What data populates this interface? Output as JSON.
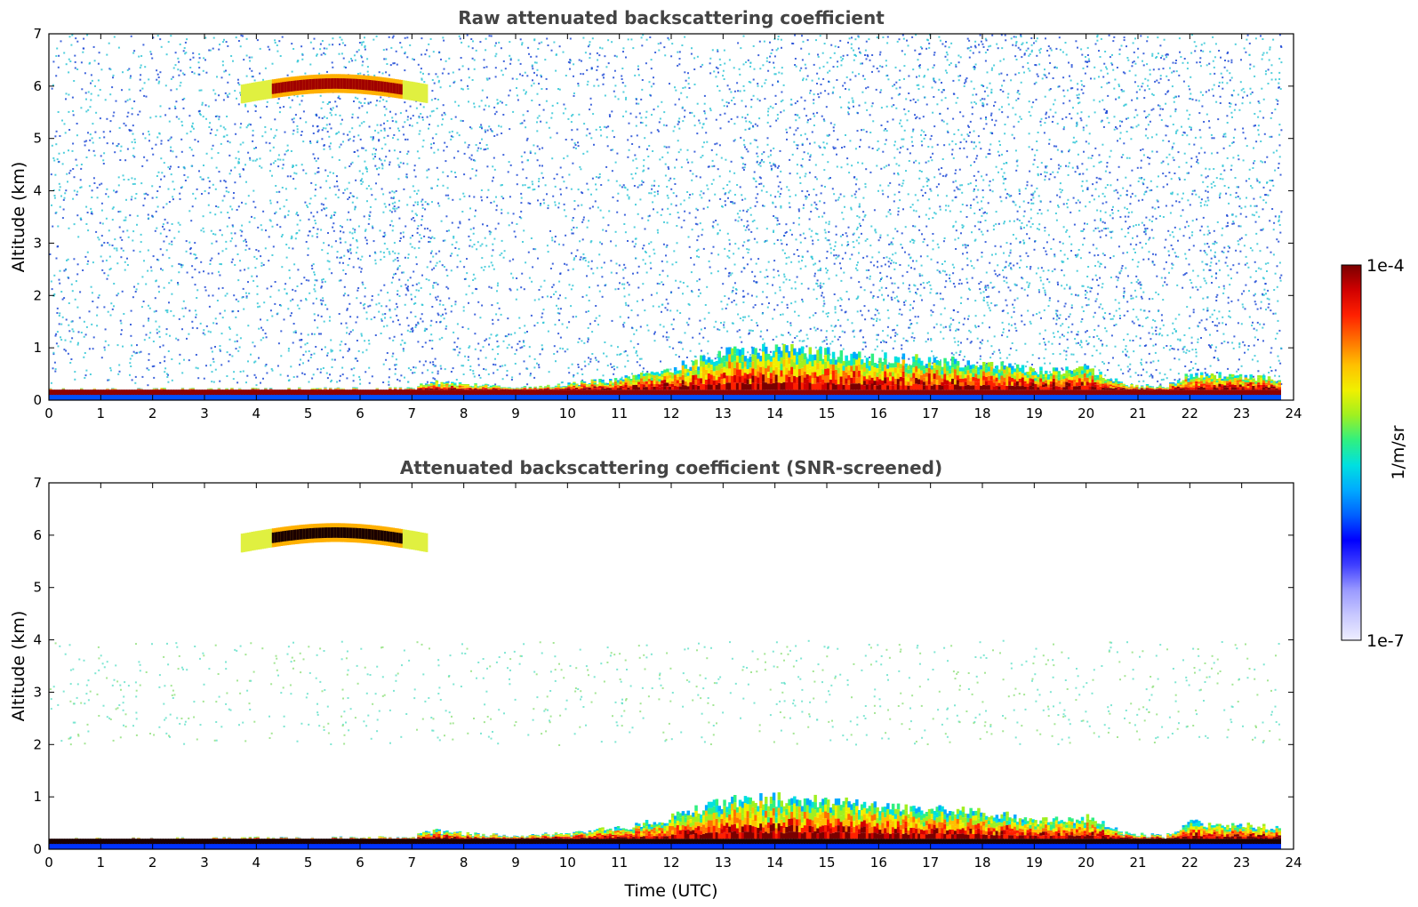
{
  "colors": {
    "colormap": [
      "#eeeeff",
      "#c8c8ff",
      "#9a9aff",
      "#4040ff",
      "#0000ff",
      "#0060ff",
      "#00aaff",
      "#00e0e0",
      "#30f080",
      "#a0f020",
      "#f0f000",
      "#ffc000",
      "#ff7000",
      "#ff2000",
      "#d00000",
      "#7a0000"
    ],
    "noise_blue": "#1f4ad6",
    "noise_cyan": "#33c7d6",
    "screened_dark": "#1a0000"
  },
  "chart_data": [
    {
      "type": "heatmap",
      "title": "Raw attenuated backscattering coefficient",
      "xlabel": "",
      "ylabel": "Altitude (km)",
      "xlim": [
        0,
        24
      ],
      "ylim": [
        0,
        7
      ],
      "x_ticks": [
        "0",
        "1",
        "2",
        "3",
        "4",
        "5",
        "6",
        "7",
        "8",
        "9",
        "10",
        "11",
        "12",
        "13",
        "14",
        "15",
        "16",
        "17",
        "18",
        "19",
        "20",
        "21",
        "22",
        "23",
        "24"
      ],
      "y_ticks": [
        "0",
        "1",
        "2",
        "3",
        "4",
        "5",
        "6",
        "7"
      ],
      "features": {
        "boundary_layer_top_km": [
          [
            0,
            0.2
          ],
          [
            7,
            0.22
          ],
          [
            7.3,
            0.35
          ],
          [
            8,
            0.3
          ],
          [
            9,
            0.25
          ],
          [
            10,
            0.3
          ],
          [
            11,
            0.4
          ],
          [
            12,
            0.6
          ],
          [
            13,
            0.9
          ],
          [
            14,
            0.95
          ],
          [
            15,
            0.9
          ],
          [
            16,
            0.8
          ],
          [
            17,
            0.75
          ],
          [
            18,
            0.7
          ],
          [
            19,
            0.55
          ],
          [
            20,
            0.6
          ],
          [
            20.7,
            0.3
          ],
          [
            21.5,
            0.25
          ],
          [
            22,
            0.5
          ],
          [
            23,
            0.45
          ],
          [
            23.75,
            0.4
          ]
        ],
        "elevated_cloud_layer": [
          {
            "x_start": 3.7,
            "x_end": 7.3,
            "base_km": 5.7,
            "top_km": 6.2
          }
        ],
        "noise_region_km": [
          0.3,
          7
        ]
      }
    },
    {
      "type": "heatmap",
      "title": "Attenuated backscattering coefficient (SNR-screened)",
      "xlabel": "Time (UTC)",
      "ylabel": "Altitude (km)",
      "xlim": [
        0,
        24
      ],
      "ylim": [
        0,
        7
      ],
      "x_ticks": [
        "0",
        "1",
        "2",
        "3",
        "4",
        "5",
        "6",
        "7",
        "8",
        "9",
        "10",
        "11",
        "12",
        "13",
        "14",
        "15",
        "16",
        "17",
        "18",
        "19",
        "20",
        "21",
        "22",
        "23",
        "24"
      ],
      "y_ticks": [
        "0",
        "1",
        "2",
        "3",
        "4",
        "5",
        "6",
        "7"
      ],
      "features": {
        "boundary_layer_top_km": [
          [
            0,
            0.2
          ],
          [
            7,
            0.22
          ],
          [
            7.3,
            0.35
          ],
          [
            8,
            0.3
          ],
          [
            9,
            0.25
          ],
          [
            10,
            0.3
          ],
          [
            11,
            0.4
          ],
          [
            12,
            0.6
          ],
          [
            13,
            0.9
          ],
          [
            14,
            0.95
          ],
          [
            15,
            0.9
          ],
          [
            16,
            0.8
          ],
          [
            17,
            0.75
          ],
          [
            18,
            0.7
          ],
          [
            19,
            0.55
          ],
          [
            20,
            0.6
          ],
          [
            20.7,
            0.3
          ],
          [
            21.5,
            0.25
          ],
          [
            22,
            0.5
          ],
          [
            23,
            0.45
          ],
          [
            23.75,
            0.4
          ]
        ],
        "elevated_cloud_layer": [
          {
            "x_start": 3.7,
            "x_end": 7.3,
            "base_km": 5.7,
            "top_km": 6.2
          }
        ],
        "noise_region_km": [
          2,
          4
        ]
      }
    }
  ],
  "colorbar": {
    "label": "1/m/sr",
    "max_label": "1e-4",
    "min_label": "1e-7",
    "range": [
      1e-07,
      0.0001
    ],
    "scale": "log"
  }
}
